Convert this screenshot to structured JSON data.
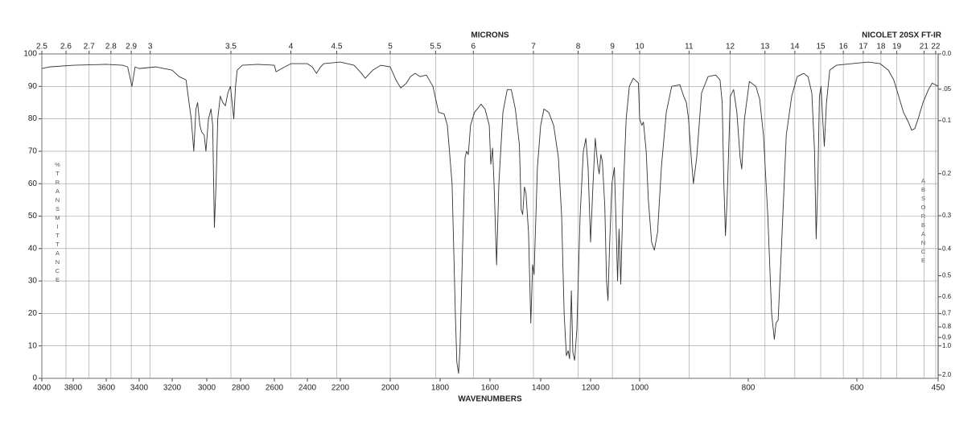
{
  "chart_data": {
    "type": "line",
    "title": "NICOLET 20SX FT-IR",
    "top_axis_label": "MICRONS",
    "x_label": "WAVENUMBERS",
    "y_label": "%TRANSMITTANCE",
    "y2_label": "ABSORBANCE",
    "color": "#333333",
    "grid": true,
    "xlim": [
      4000,
      450
    ],
    "xticks": [
      4000,
      3800,
      3600,
      3400,
      3200,
      3000,
      2800,
      2600,
      2400,
      2200,
      2000,
      1800,
      1600,
      1400,
      1200,
      1000,
      800,
      600,
      450
    ],
    "top_ticks": [
      2.5,
      2.6,
      2.7,
      2.8,
      2.9,
      3,
      3.5,
      4,
      4.5,
      5,
      5.5,
      6,
      7,
      8,
      9,
      10,
      11,
      12,
      13,
      14,
      15,
      16,
      17,
      18,
      19,
      21,
      22
    ],
    "ylim": [
      0,
      100
    ],
    "yticks": [
      0,
      10,
      20,
      30,
      40,
      50,
      60,
      70,
      80,
      90,
      100
    ],
    "y2_scale": "absorbance",
    "y2ticks": [
      {
        "value": 0,
        "label": "0.0"
      },
      {
        "value": 0.05,
        "label": ".05"
      },
      0.1,
      0.2,
      0.3,
      0.4,
      0.5,
      0.6,
      0.7,
      0.8,
      0.9,
      {
        "value": 1,
        "label": "1.0"
      },
      {
        "value": 2,
        "label": "2.0"
      }
    ],
    "x": [
      4000,
      3950,
      3800,
      3600,
      3500,
      3470,
      3444,
      3425,
      3400,
      3300,
      3200,
      3160,
      3120,
      3090,
      3075,
      3063,
      3053,
      3040,
      3030,
      3015,
      3005,
      2990,
      2975,
      2965,
      2955,
      2945,
      2935,
      2920,
      2905,
      2890,
      2875,
      2860,
      2850,
      2840,
      2830,
      2820,
      2790,
      2700,
      2600,
      2590,
      2555,
      2500,
      2400,
      2370,
      2345,
      2320,
      2300,
      2200,
      2145,
      2115,
      2100,
      2070,
      2038,
      2000,
      1977,
      1958,
      1935,
      1919,
      1900,
      1880,
      1855,
      1829,
      1806,
      1784,
      1771,
      1752,
      1739,
      1733,
      1726,
      1720,
      1710,
      1700,
      1694,
      1687,
      1678,
      1662,
      1636,
      1620,
      1603,
      1597,
      1590,
      1584,
      1574,
      1565,
      1549,
      1532,
      1516,
      1500,
      1484,
      1477,
      1471,
      1464,
      1458,
      1448,
      1439,
      1432,
      1426,
      1413,
      1400,
      1387,
      1368,
      1348,
      1329,
      1316,
      1306,
      1297,
      1290,
      1284,
      1277,
      1271,
      1264,
      1255,
      1242,
      1229,
      1219,
      1210,
      1200,
      1190,
      1181,
      1171,
      1165,
      1158,
      1152,
      1142,
      1135,
      1129,
      1123,
      1113,
      1103,
      1097,
      1090,
      1084,
      1077,
      1068,
      1055,
      1042,
      1026,
      1005,
      1000,
      996,
      993,
      988,
      984,
      978,
      973,
      967,
      960,
      951,
      941,
      926,
      919,
      914,
      910,
      905,
      901,
      895,
      886,
      874,
      860,
      852,
      848,
      845,
      842,
      839,
      833,
      827,
      821,
      815,
      812,
      807,
      798,
      786,
      779,
      772,
      764,
      757,
      752,
      749,
      745,
      739,
      730,
      720,
      710,
      698,
      690,
      683,
      678,
      675,
      672,
      669,
      666,
      663,
      660,
      656,
      650,
      638,
      609,
      579,
      557,
      542,
      532,
      523,
      514,
      505,
      499,
      493,
      487,
      478,
      468,
      461,
      450
    ],
    "values": [
      95.5,
      96,
      96.5,
      96.8,
      96.5,
      96,
      90,
      96,
      95.5,
      96,
      95,
      93,
      92,
      80,
      70,
      83,
      85,
      78,
      76,
      75,
      70,
      80,
      83,
      78,
      46.5,
      60,
      80,
      87,
      85,
      84,
      88,
      90,
      85,
      80,
      90,
      95,
      96.5,
      96.8,
      96.5,
      94.5,
      95.5,
      97,
      97,
      96,
      94,
      96,
      97,
      97.5,
      96.5,
      94,
      92.5,
      95,
      96.5,
      96,
      92,
      89.5,
      91,
      93,
      94,
      93,
      93.5,
      90,
      82,
      81.5,
      78,
      60,
      20,
      5,
      1.5,
      10,
      40,
      68,
      70,
      69,
      78,
      82,
      84.5,
      83,
      78,
      66,
      71,
      60,
      35,
      60,
      82,
      89,
      89,
      83,
      72,
      52,
      50.5,
      59,
      57,
      45,
      17,
      35,
      32,
      65,
      78,
      83,
      82,
      78,
      68,
      50,
      20,
      7,
      8.5,
      6,
      27,
      8,
      5.5,
      15,
      50,
      70,
      74,
      65,
      42,
      60,
      74,
      66,
      63,
      69,
      67,
      53,
      30,
      24,
      40,
      60,
      65,
      50,
      30,
      46,
      29,
      55,
      80,
      90,
      92.5,
      91,
      80,
      78,
      79,
      70,
      55,
      42,
      39.5,
      45,
      65,
      82,
      90,
      90.5,
      87,
      85,
      80,
      68,
      60,
      68,
      88,
      93,
      93.5,
      92,
      85,
      60,
      44,
      55,
      87,
      89,
      82,
      68,
      64.5,
      80,
      91.5,
      90,
      86,
      75,
      50,
      20,
      12,
      17,
      18,
      40,
      75,
      87,
      93,
      94,
      93,
      88,
      70,
      43,
      60,
      87,
      90,
      80,
      71.5,
      85,
      95,
      96.5,
      97,
      97.5,
      97,
      95,
      92,
      87,
      82,
      79,
      76.5,
      77,
      80,
      85,
      89,
      91,
      90
    ]
  }
}
